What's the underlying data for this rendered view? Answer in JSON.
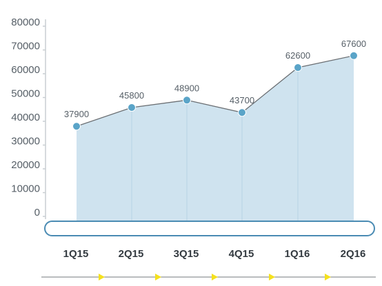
{
  "chart_data": {
    "type": "area",
    "categories": [
      "1Q15",
      "2Q15",
      "3Q15",
      "4Q15",
      "1Q16",
      "2Q16"
    ],
    "series": [
      {
        "values": [
          37900,
          45800,
          48900,
          43700,
          62600,
          67600
        ]
      }
    ],
    "data_labels": [
      "37900",
      "45800",
      "48900",
      "43700",
      "62600",
      "67600"
    ],
    "y_ticks": [
      "80000",
      "70000",
      "60000",
      "50000",
      "40000",
      "30000",
      "20000",
      "10000",
      "0"
    ],
    "ylim": [
      0,
      80000
    ],
    "title": "",
    "xlabel": "",
    "ylabel": "",
    "grid": false,
    "colors": {
      "fill": "#cfe3ef",
      "line": "#6b6f73",
      "marker": "#5aa4c8",
      "axis": "#c9ced2",
      "bar_outline": "#4a8bb3",
      "arrow": "#f5e11e"
    }
  }
}
